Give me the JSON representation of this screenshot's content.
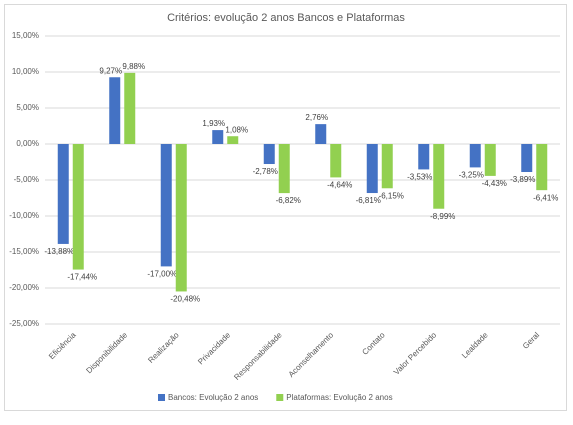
{
  "chart_data": {
    "type": "bar",
    "title": "Critérios: evolução 2 anos Bancos e Plataformas",
    "categories": [
      "Eficiência",
      "Disponibilidade",
      "Realização",
      "Privacidade",
      "Responsabilidade",
      "Aconselhamento",
      "Contato",
      "Valor Percebido",
      "Lealdade",
      "Geral"
    ],
    "series": [
      {
        "name": "Bancos: Evolução 2 anos",
        "color": "#4472c4",
        "values": [
          -13.88,
          9.27,
          -17.0,
          1.93,
          -2.78,
          2.76,
          -6.81,
          -3.53,
          -3.25,
          -3.89
        ],
        "value_labels": [
          "-13,88%",
          "9,27%",
          "-17,00%",
          "1,93%",
          "-2,78%",
          "2,76%",
          "-6,81%",
          "-3,53%",
          "-3,25%",
          "-3,89%"
        ]
      },
      {
        "name": "Plataformas: Evolução 2 anos",
        "color": "#92d050",
        "values": [
          -17.44,
          9.88,
          -20.48,
          1.08,
          -6.82,
          -4.64,
          -6.15,
          -8.99,
          -4.43,
          -6.41
        ],
        "value_labels": [
          "-17,44%",
          "9,88%",
          "-20,48%",
          "1,08%",
          "-6,82%",
          "-4,64%",
          "-6,15%",
          "-8,99%",
          "-4,43%",
          "-6,41%"
        ]
      }
    ],
    "ylim": [
      -25,
      15
    ],
    "yticks": [
      {
        "value": 15,
        "label": "15,00%"
      },
      {
        "value": 10,
        "label": "10,00%"
      },
      {
        "value": 5,
        "label": "5,00%"
      },
      {
        "value": 0,
        "label": "0,00%"
      },
      {
        "value": -5,
        "label": "-5,00%"
      },
      {
        "value": -10,
        "label": "-10,00%"
      },
      {
        "value": -15,
        "label": "-15,00%"
      },
      {
        "value": -20,
        "label": "-20,00%"
      },
      {
        "value": -25,
        "label": "-25,00%"
      }
    ],
    "grid": true,
    "legend": "bottom"
  }
}
